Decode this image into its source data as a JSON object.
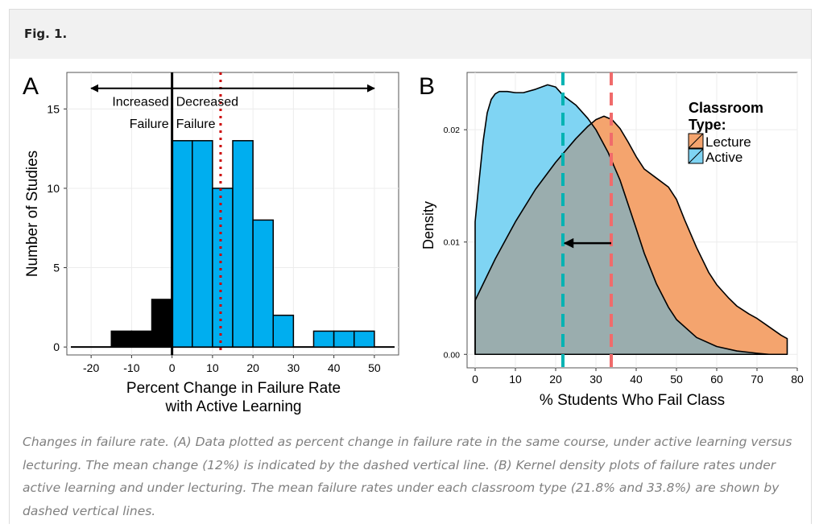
{
  "figure": {
    "label": "Fig. 1.",
    "caption": "Changes in failure rate. (A) Data plotted as percent change in failure rate in the same course, under active learning versus lecturing. The mean change (12%) is indicated by the dashed vertical line. (B) Kernel density plots of failure rates under active learning and under lecturing. The mean failure rates under each classroom type (21.8% and 33.8%) are shown by dashed vertical lines."
  },
  "chart_data": [
    {
      "panel": "A",
      "type": "bar",
      "xlabel": "Percent Change in Failure Rate\nwith Active Learning",
      "ylabel": "Number of Studies",
      "xlim": [
        -26,
        56
      ],
      "ylim": [
        -0.5,
        17.3
      ],
      "xticks": [
        -20,
        -10,
        0,
        10,
        20,
        30,
        40,
        50
      ],
      "yticks": [
        0,
        5,
        10,
        15
      ],
      "bin_width": 5,
      "bins": [
        {
          "start": -15,
          "count": 1
        },
        {
          "start": -10,
          "count": 1
        },
        {
          "start": -5,
          "count": 3
        },
        {
          "start": 0,
          "count": 13
        },
        {
          "start": 5,
          "count": 13
        },
        {
          "start": 10,
          "count": 10
        },
        {
          "start": 15,
          "count": 13
        },
        {
          "start": 20,
          "count": 8
        },
        {
          "start": 25,
          "count": 2
        },
        {
          "start": 30,
          "count": 0
        },
        {
          "start": 35,
          "count": 1
        },
        {
          "start": 40,
          "count": 1
        },
        {
          "start": 45,
          "count": 1
        }
      ],
      "mean_line": 12,
      "zero_line": 0,
      "annotations": {
        "left": "Increased\nFailure",
        "right": "Decreased\nFailure"
      },
      "arrow_range": [
        -20,
        50
      ],
      "colors": {
        "increased": "#000000",
        "decreased": "#00aeef",
        "mean": "#cc0000"
      }
    },
    {
      "panel": "B",
      "type": "area",
      "xlabel": "% Students Who Fail Class",
      "ylabel": "Density",
      "xlim": [
        -2,
        80
      ],
      "ylim": [
        -0.0012,
        0.0251
      ],
      "xticks": [
        0,
        10,
        20,
        30,
        40,
        50,
        60,
        70,
        80
      ],
      "yticks": [
        0.0,
        0.01,
        0.02
      ],
      "legend_title": "Classroom\nType:",
      "legend_position": "top-right",
      "series": [
        {
          "name": "Lecture",
          "color": "#f4a46e",
          "mean": 33.8,
          "x": [
            0,
            5,
            10,
            15,
            20,
            25,
            28,
            30,
            32,
            34,
            36,
            38,
            40,
            42,
            45,
            48,
            50,
            52,
            55,
            58,
            60,
            63,
            65,
            68,
            70,
            72,
            74,
            76,
            77.5
          ],
          "y": [
            0.0048,
            0.0085,
            0.0118,
            0.0147,
            0.0171,
            0.0192,
            0.0203,
            0.0209,
            0.0212,
            0.0209,
            0.0201,
            0.0189,
            0.0176,
            0.0165,
            0.0157,
            0.0149,
            0.0138,
            0.012,
            0.0095,
            0.0073,
            0.0062,
            0.005,
            0.0043,
            0.0036,
            0.0032,
            0.0027,
            0.0022,
            0.0017,
            0.0014
          ]
        },
        {
          "name": "Active",
          "color": "#7fd4f3",
          "mean": 21.8,
          "x": [
            0,
            1,
            2,
            3,
            4,
            5,
            6,
            8,
            10,
            12,
            15,
            18,
            20,
            22,
            25,
            28,
            30,
            33,
            36,
            40,
            42,
            45,
            48,
            50,
            55,
            60,
            65,
            70,
            73
          ],
          "y": [
            0.0118,
            0.0155,
            0.019,
            0.0215,
            0.0227,
            0.0232,
            0.0234,
            0.0234,
            0.0233,
            0.0233,
            0.0236,
            0.024,
            0.0238,
            0.023,
            0.0222,
            0.021,
            0.02,
            0.018,
            0.0155,
            0.0112,
            0.009,
            0.0063,
            0.0042,
            0.0031,
            0.0015,
            0.0007,
            0.0003,
            0.0001,
            0.0
          ]
        }
      ],
      "arrow": {
        "from": 33.8,
        "to": 21.8,
        "y": 0.0099
      },
      "colors": {
        "overlap": "#9aadae",
        "active_line": "#00b3b3",
        "lecture_line": "#f06b6b"
      }
    }
  ]
}
